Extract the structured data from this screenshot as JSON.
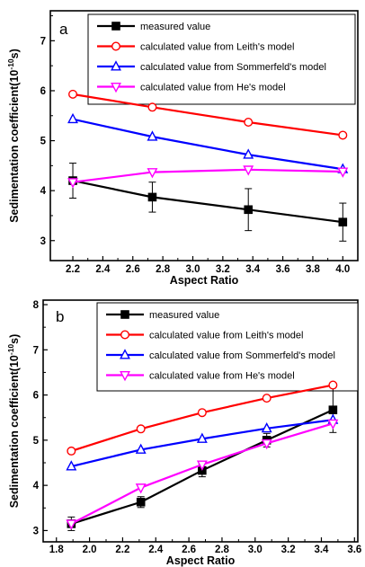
{
  "chart_data": [
    {
      "type": "line",
      "panel_label": "a",
      "xlabel": "Aspect Ratio",
      "ylabel_main": "Sedimentation coefficient(10",
      "ylabel_exp": "-10",
      "ylabel_unit": "s)",
      "xlim": [
        2.05,
        4.1
      ],
      "ylim": [
        2.6,
        7.6
      ],
      "xticks": [
        "2.2",
        "2.4",
        "2.6",
        "2.8",
        "3.0",
        "3.2",
        "3.4",
        "3.6",
        "3.8",
        "4.0"
      ],
      "yticks": [
        "3",
        "4",
        "5",
        "6",
        "7"
      ],
      "legend_position": "top-right",
      "x": [
        2.2,
        2.73,
        3.37,
        4.0
      ],
      "series": [
        {
          "name": "measured value",
          "color": "#000000",
          "marker": "square-filled",
          "values": [
            4.2,
            3.87,
            3.62,
            3.37
          ],
          "errors": [
            0.35,
            0.3,
            0.42,
            0.38
          ]
        },
        {
          "name": "calculated value from Leith's model",
          "color": "#ff0000",
          "marker": "circle-open",
          "values": [
            5.93,
            5.67,
            5.37,
            5.11
          ]
        },
        {
          "name": "calculated value from Sommerfeld's model",
          "color": "#0000ff",
          "marker": "triangle-up-open",
          "values": [
            5.43,
            5.08,
            4.72,
            4.43
          ]
        },
        {
          "name": "calculated value from He's model",
          "color": "#ff00ff",
          "marker": "triangle-down-open",
          "values": [
            4.17,
            4.37,
            4.42,
            4.38
          ]
        }
      ]
    },
    {
      "type": "line",
      "panel_label": "b",
      "xlabel": "Aspect Ratio",
      "ylabel_main": "Sedimentation coefficient(10",
      "ylabel_exp": "-10",
      "ylabel_unit": "s)",
      "xlim": [
        1.72,
        3.62
      ],
      "ylim": [
        2.75,
        8.1
      ],
      "xticks": [
        "1.8",
        "2.0",
        "2.2",
        "2.4",
        "2.6",
        "2.8",
        "3.0",
        "3.2",
        "3.4",
        "3.6"
      ],
      "yticks": [
        "3",
        "4",
        "5",
        "6",
        "7",
        "8"
      ],
      "legend_position": "top",
      "x": [
        1.89,
        2.31,
        2.68,
        3.07,
        3.47
      ],
      "series": [
        {
          "name": "measured value",
          "color": "#000000",
          "marker": "square-filled",
          "values": [
            3.15,
            3.63,
            4.33,
            5.0,
            5.67
          ],
          "errors": [
            0.15,
            0.12,
            0.14,
            0.15,
            0.5
          ]
        },
        {
          "name": "calculated value from Leith's model",
          "color": "#ff0000",
          "marker": "circle-open",
          "values": [
            4.76,
            5.25,
            5.61,
            5.93,
            6.22
          ]
        },
        {
          "name": "calculated value from Sommerfeld's model",
          "color": "#0000ff",
          "marker": "triangle-up-open",
          "values": [
            4.42,
            4.79,
            5.03,
            5.26,
            5.45
          ]
        },
        {
          "name": "calculated value from He's model",
          "color": "#ff00ff",
          "marker": "triangle-down-open",
          "values": [
            3.15,
            3.95,
            4.46,
            4.93,
            5.37
          ]
        }
      ]
    }
  ]
}
